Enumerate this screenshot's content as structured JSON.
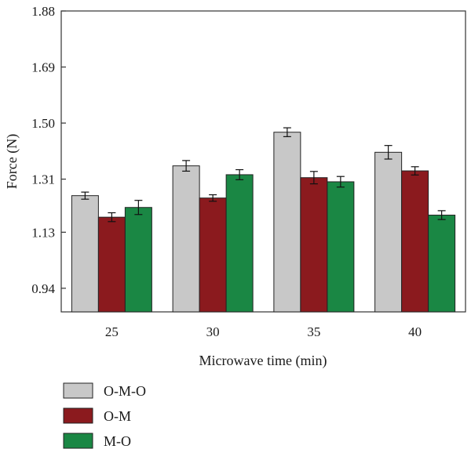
{
  "chart_data": {
    "type": "bar",
    "xlabel": "Microwave time (min)",
    "ylabel": "Force (N)",
    "categories": [
      "25",
      "30",
      "35",
      "40"
    ],
    "ylim": [
      0.86,
      1.88
    ],
    "yticks": [
      "0.94",
      "1.13",
      "1.31",
      "1.50",
      "1.69",
      "1.88"
    ],
    "series": [
      {
        "name": "O-M-O",
        "color": "#c8c8c8",
        "values": [
          1.254,
          1.355,
          1.469,
          1.401
        ],
        "errors": [
          0.012,
          0.018,
          0.015,
          0.023
        ]
      },
      {
        "name": "O-M",
        "color": "#8b1a1e",
        "values": [
          1.181,
          1.246,
          1.315,
          1.338
        ],
        "errors": [
          0.015,
          0.011,
          0.021,
          0.014
        ]
      },
      {
        "name": "M-O",
        "color": "#1a8744",
        "values": [
          1.214,
          1.325,
          1.301,
          1.188
        ],
        "errors": [
          0.024,
          0.017,
          0.018,
          0.015
        ]
      }
    ],
    "legend_position": "bottom-left"
  }
}
